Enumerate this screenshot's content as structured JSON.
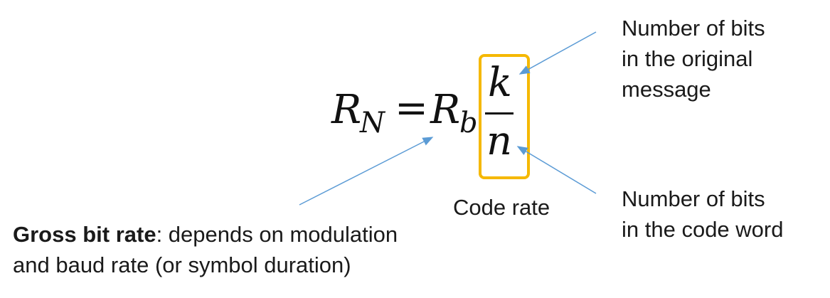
{
  "equation": {
    "lhs_symbol": "R",
    "lhs_subscript": "N",
    "equals": "=",
    "rhs_symbol": "R",
    "rhs_subscript": "b",
    "numerator": "k",
    "denominator": "n"
  },
  "annotations": {
    "numerator_lines": [
      "Number of bits",
      "in the original",
      "message"
    ],
    "denominator_lines": [
      "Number of bits",
      "in the code word"
    ],
    "code_rate": "Code rate",
    "gross_bold": "Gross bit rate",
    "gross_rest": ": depends on modulation",
    "gross_line2": "and baud rate (or symbol duration)"
  },
  "colors": {
    "highlight_box": "#F5B800",
    "arrow": "#5B9BD5"
  }
}
